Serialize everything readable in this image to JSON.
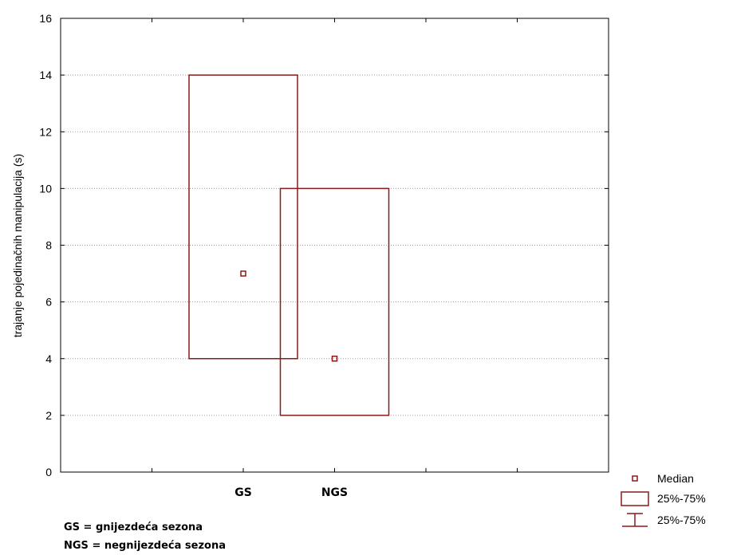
{
  "chart_data": {
    "type": "box",
    "ylabel": "trajanje pojedinačnih manipulacija (s)",
    "xlabel": "",
    "ylim": [
      0,
      16
    ],
    "yticks": [
      0,
      2,
      4,
      6,
      8,
      10,
      12,
      14,
      16
    ],
    "ytick_labels": [
      "0",
      "2",
      "4",
      "6",
      "8",
      "10",
      "12",
      "14",
      "16"
    ],
    "categories": [
      "GS",
      "NGS"
    ],
    "boxes": [
      {
        "category": "GS",
        "median": 7,
        "q1": 4,
        "q3": 14,
        "whisker_low": 4,
        "whisker_high": 14
      },
      {
        "category": "NGS",
        "median": 4,
        "q1": 2,
        "q3": 10,
        "whisker_low": 2,
        "whisker_high": 10
      }
    ],
    "grid": true,
    "legend": {
      "position": "bottom-right",
      "entries": [
        "Median",
        "25%-75%",
        "25%-75%"
      ]
    },
    "notes": [
      "GS = gnijezdeća sezona",
      "NGS = negnijezdeća sezona"
    ],
    "colors": {
      "box": "#8b1a1a",
      "median": "#8b1a1a",
      "axis": "#000000",
      "grid": "#a0a0a0"
    }
  }
}
